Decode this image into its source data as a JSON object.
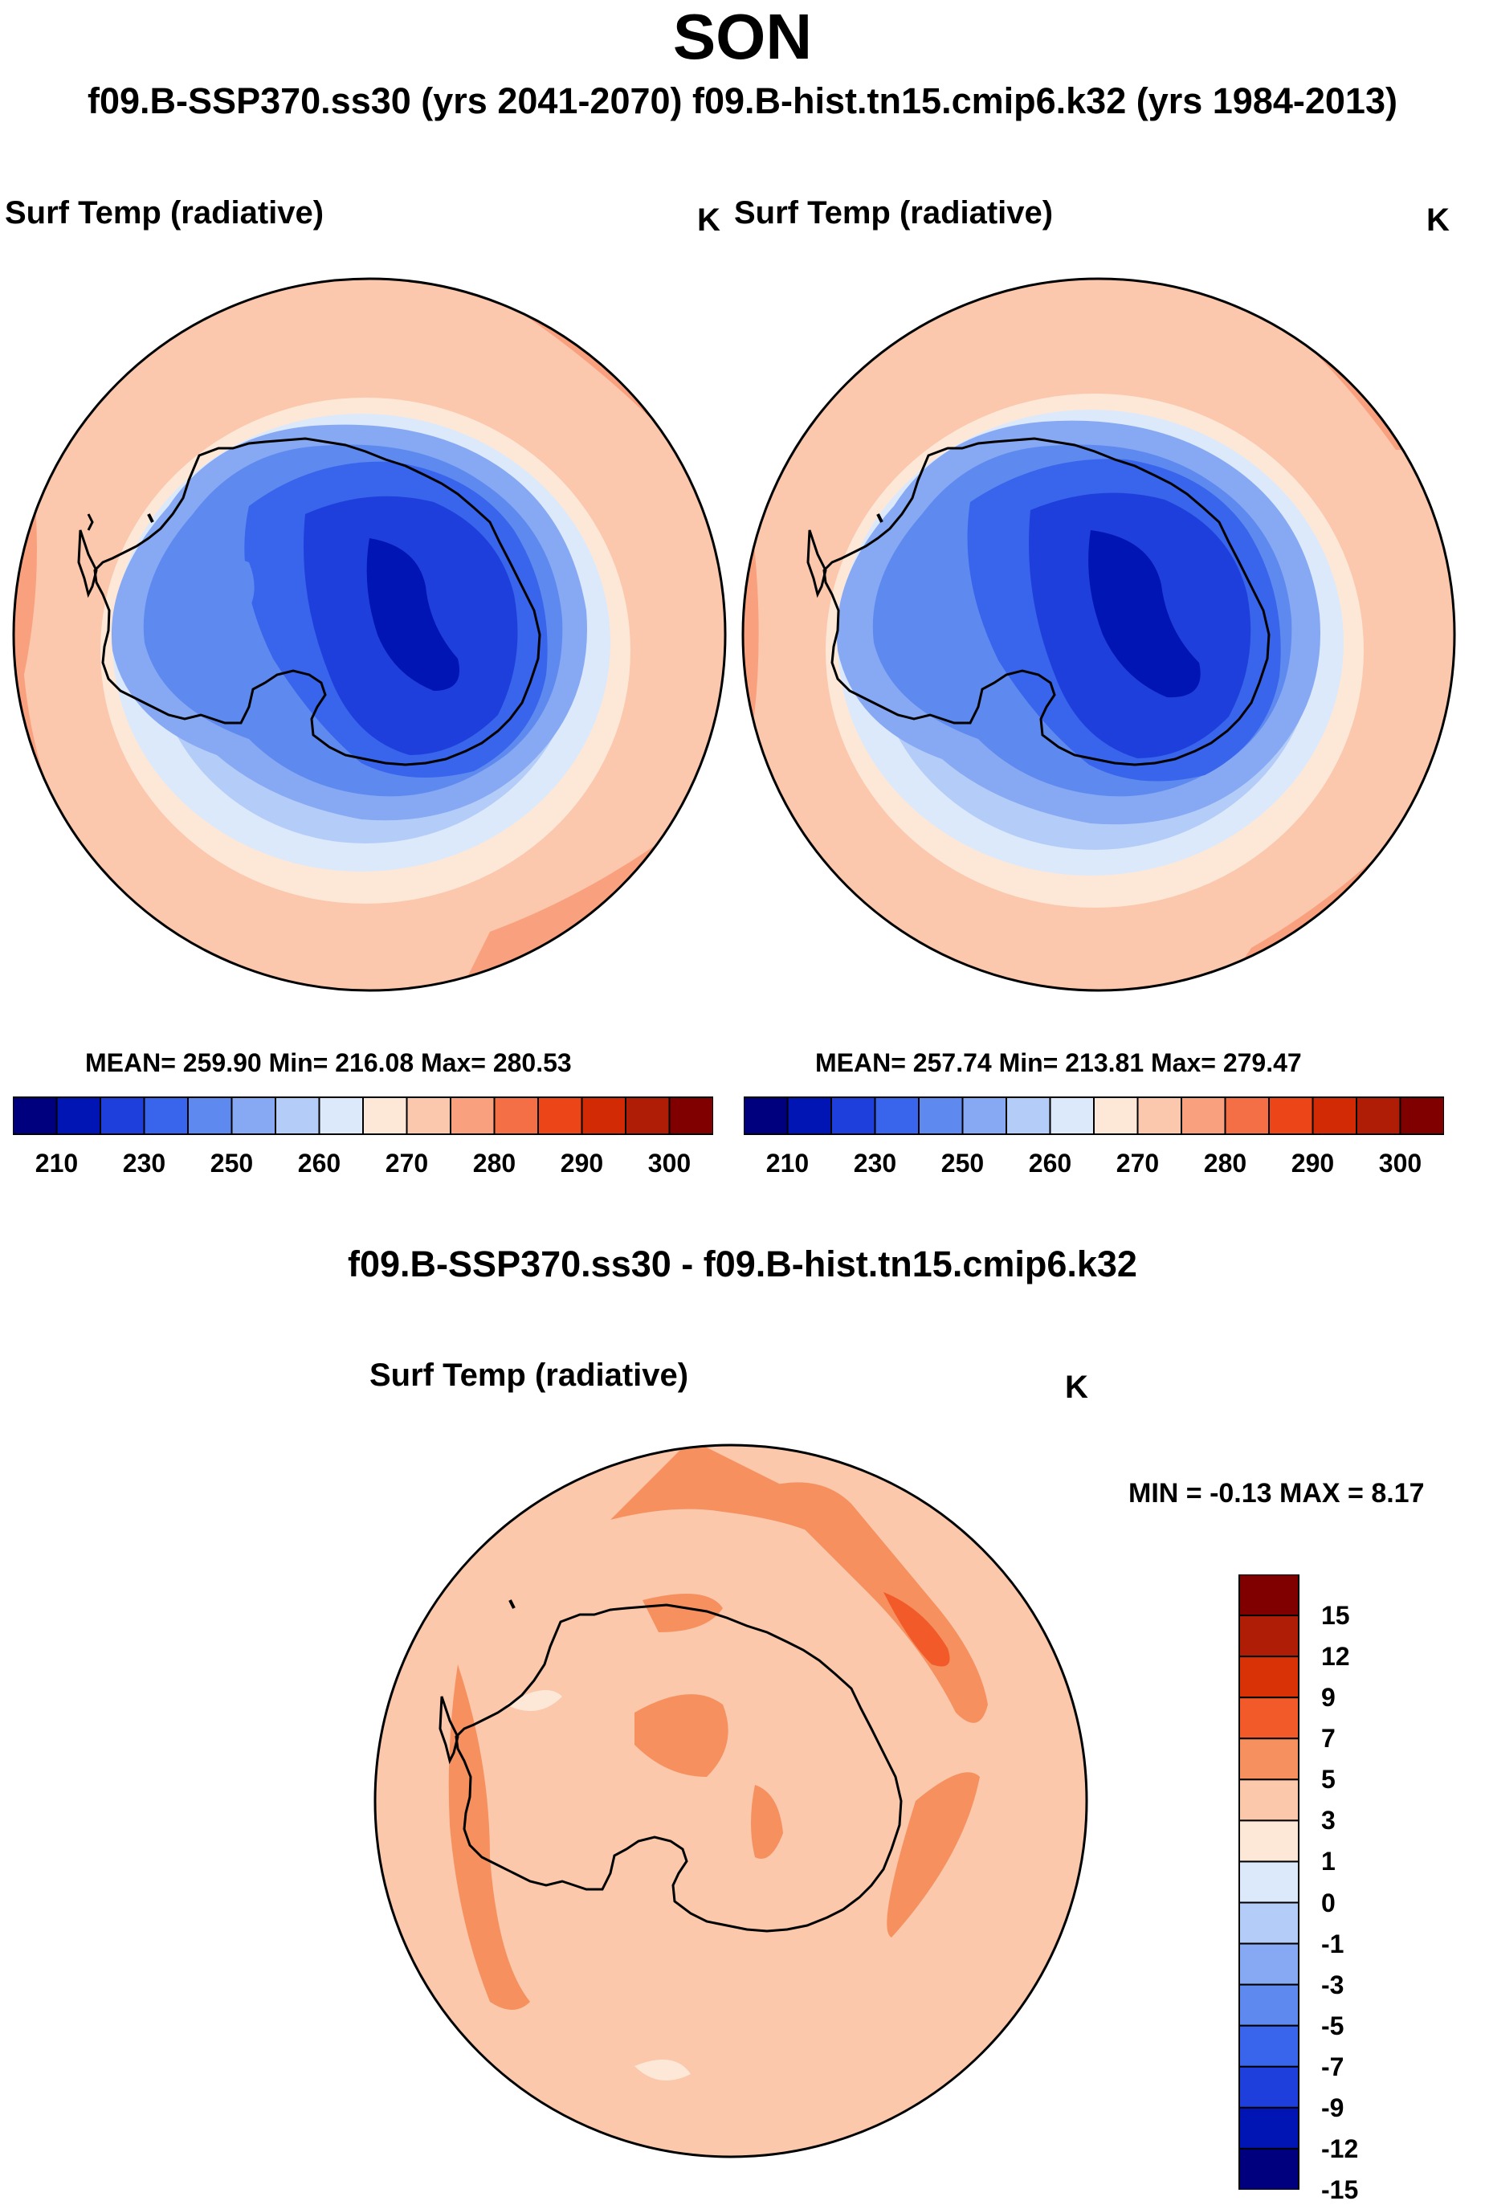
{
  "header": {
    "title": "SON",
    "subtitle": "f09.B-SSP370.ss30 (yrs 2041-2070)  f09.B-hist.tn15.cmip6.k32 (yrs 1984-2013)"
  },
  "panels": [
    {
      "label": "Surf Temp (radiative)",
      "units": "K",
      "stats": "MEAN= 259.90  Min= 216.08  Max= 280.53",
      "mean": 259.9,
      "min": 216.08,
      "max": 280.53
    },
    {
      "label": "Surf Temp (radiative)",
      "units": "K",
      "stats": "MEAN= 257.74  Min= 213.81  Max= 279.47",
      "mean": 257.74,
      "min": 213.81,
      "max": 279.47
    }
  ],
  "difference": {
    "title": "f09.B-SSP370.ss30 - f09.B-hist.tn15.cmip6.k32",
    "label": "Surf Temp (radiative)",
    "units": "K",
    "stats": "MIN =  -0.13 MAX =   8.17",
    "min": -0.13,
    "max": 8.17
  },
  "colorbars": {
    "absolute": {
      "tick_labels": [
        "210",
        "230",
        "250",
        "260",
        "270",
        "280",
        "290",
        "300"
      ],
      "colors": [
        "#00007f",
        "#0015b3",
        "#1e3fdc",
        "#3865eb",
        "#5e8af0",
        "#87a9f3",
        "#b4cdf8",
        "#dce9fb",
        "#fde8d8",
        "#fbc7ad",
        "#f9a07e",
        "#f46f46",
        "#ec4517",
        "#d22a05",
        "#b01d07",
        "#800000"
      ]
    },
    "difference": {
      "tick_labels": [
        "15",
        "12",
        "9",
        "7",
        "5",
        "3",
        "1",
        "0",
        "-1",
        "-3",
        "-5",
        "-7",
        "-9",
        "-12",
        "-15"
      ],
      "colors": [
        "#800000",
        "#b01d07",
        "#d83206",
        "#f25a2a",
        "#f6905f",
        "#fbc8ac",
        "#fde8d8",
        "#dce9fb",
        "#b4cdf8",
        "#87a9f3",
        "#5e8af0",
        "#3865eb",
        "#1e3fdc",
        "#0015b3",
        "#00007f"
      ]
    }
  }
}
